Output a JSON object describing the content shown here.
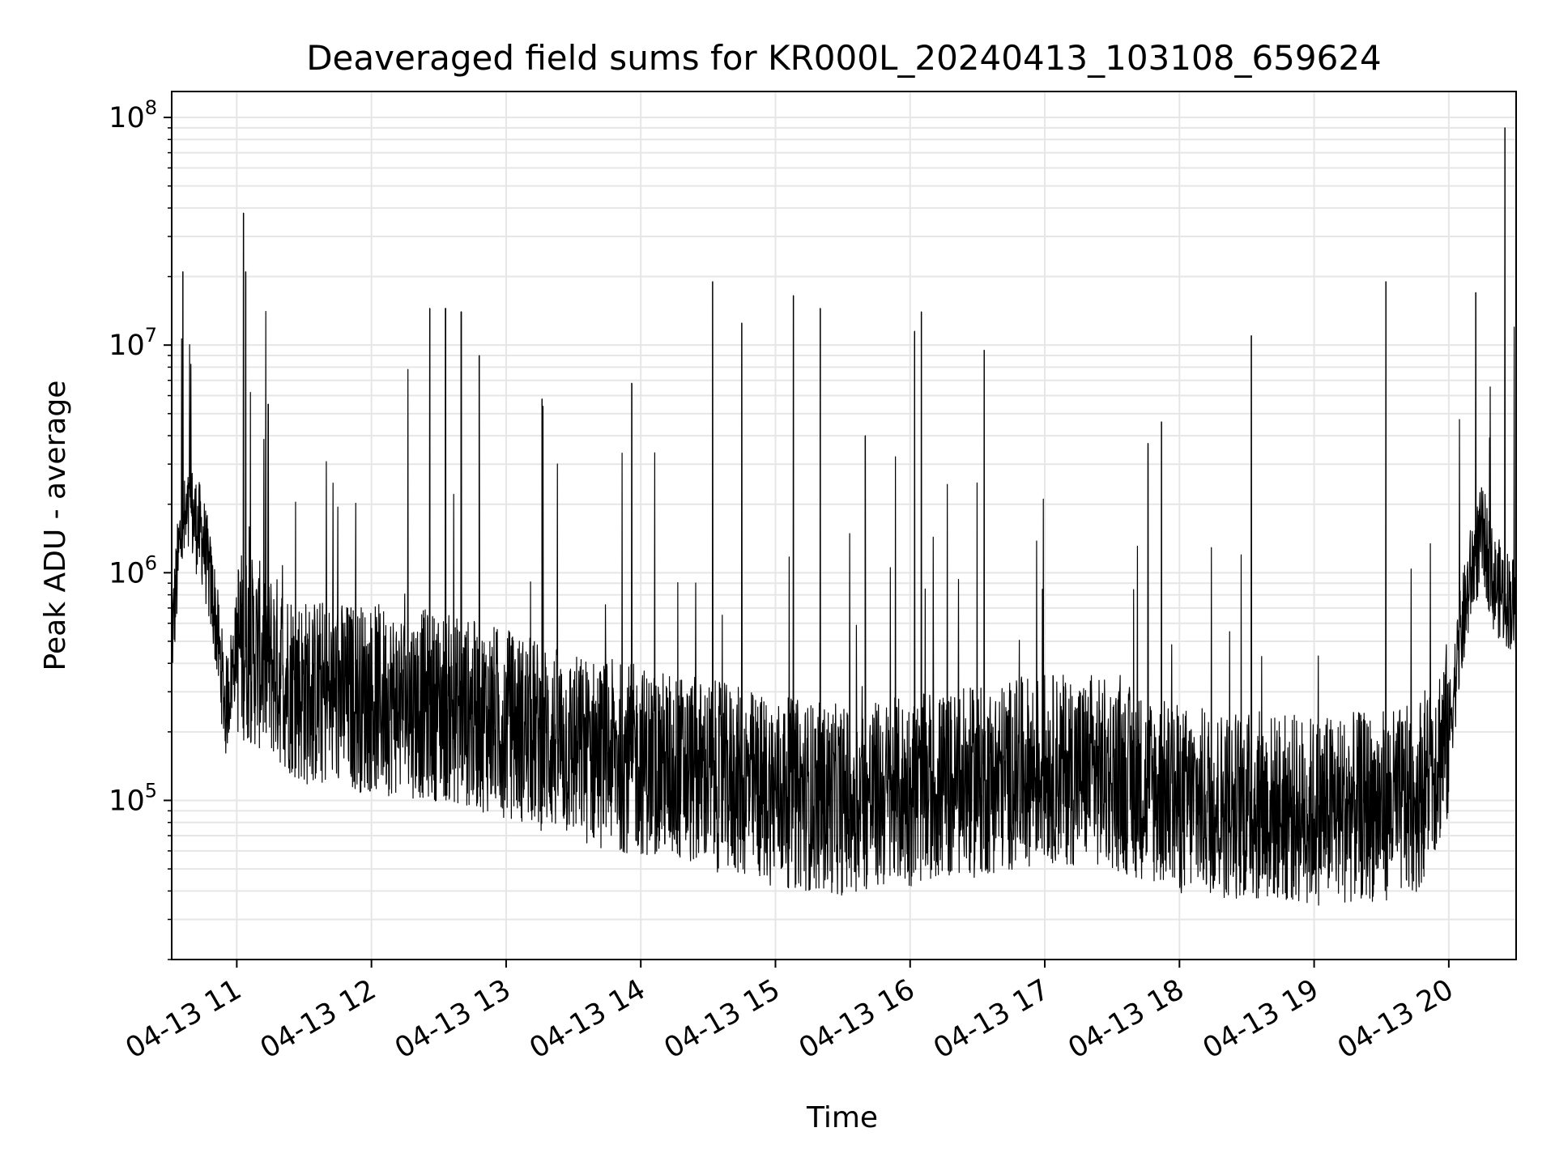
{
  "chart_data": {
    "type": "line",
    "title": "Deaveraged field sums for KR000L_20240413_103108_659624",
    "xlabel": "Time",
    "ylabel": "Peak ADU - average",
    "yscale": "log",
    "ylim": [
      20000,
      130000000
    ],
    "xlim": [
      "2024-04-13 10:31",
      "2024-04-13 20:30"
    ],
    "x_ticks": [
      "04-13 11",
      "04-13 12",
      "04-13 13",
      "04-13 14",
      "04-13 15",
      "04-13 16",
      "04-13 17",
      "04-13 18",
      "04-13 19",
      "04-13 20"
    ],
    "y_ticks": [
      {
        "base": "10",
        "exp": "5",
        "value": 100000
      },
      {
        "base": "10",
        "exp": "6",
        "value": 1000000
      },
      {
        "base": "10",
        "exp": "7",
        "value": 10000000
      },
      {
        "base": "10",
        "exp": "8",
        "value": 100000000
      }
    ],
    "grid": true,
    "line_color": "#000000",
    "series": [
      {
        "points": [
          [
            "2024-04-13 10:31",
            500000
          ],
          [
            "2024-04-13 10:35",
            1500000
          ],
          [
            "2024-04-13 10:40",
            1800000
          ],
          [
            "2024-04-13 10:45",
            1400000
          ],
          [
            "2024-04-13 10:50",
            700000
          ],
          [
            "2024-04-13 10:55",
            250000
          ],
          [
            "2024-04-13 11:00",
            500000
          ],
          [
            "2024-04-13 11:15",
            400000
          ],
          [
            "2024-04-13 11:30",
            300000
          ],
          [
            "2024-04-13 12:00",
            280000
          ],
          [
            "2024-04-13 12:30",
            260000
          ],
          [
            "2024-04-13 13:00",
            220000
          ],
          [
            "2024-04-13 13:30",
            170000
          ],
          [
            "2024-04-13 14:00",
            150000
          ],
          [
            "2024-04-13 14:30",
            130000
          ],
          [
            "2024-04-13 15:00",
            110000
          ],
          [
            "2024-04-13 15:30",
            100000
          ],
          [
            "2024-04-13 16:00",
            110000
          ],
          [
            "2024-04-13 16:30",
            120000
          ],
          [
            "2024-04-13 17:00",
            140000
          ],
          [
            "2024-04-13 17:30",
            130000
          ],
          [
            "2024-04-13 18:00",
            100000
          ],
          [
            "2024-04-13 18:30",
            95000
          ],
          [
            "2024-04-13 19:00",
            90000
          ],
          [
            "2024-04-13 19:30",
            95000
          ],
          [
            "2024-04-13 19:45",
            100000
          ],
          [
            "2024-04-13 20:00",
            200000
          ],
          [
            "2024-04-13 20:05",
            500000
          ],
          [
            "2024-04-13 20:10",
            1000000
          ],
          [
            "2024-04-13 20:15",
            1500000
          ],
          [
            "2024-04-13 20:20",
            900000
          ],
          [
            "2024-04-13 20:30",
            700000
          ]
        ]
      }
    ],
    "spikes": [
      [
        "2024-04-13 10:36",
        21000000
      ],
      [
        "2024-04-13 11:03",
        38000000
      ],
      [
        "2024-04-13 11:04",
        21000000
      ],
      [
        "2024-04-13 11:14",
        5500000
      ],
      [
        "2024-04-13 12:26",
        14500000
      ],
      [
        "2024-04-13 12:33",
        14500000
      ],
      [
        "2024-04-13 12:40",
        14000000
      ],
      [
        "2024-04-13 12:48",
        9000000
      ],
      [
        "2024-04-13 13:16",
        5800000
      ],
      [
        "2024-04-13 13:56",
        6800000
      ],
      [
        "2024-04-13 14:32",
        19000000
      ],
      [
        "2024-04-13 14:45",
        12500000
      ],
      [
        "2024-04-13 15:08",
        16500000
      ],
      [
        "2024-04-13 15:20",
        14500000
      ],
      [
        "2024-04-13 15:40",
        4000000
      ],
      [
        "2024-04-13 16:02",
        11500000
      ],
      [
        "2024-04-13 16:05",
        14000000
      ],
      [
        "2024-04-13 16:33",
        9500000
      ],
      [
        "2024-04-13 17:46",
        3700000
      ],
      [
        "2024-04-13 17:52",
        4600000
      ],
      [
        "2024-04-13 18:32",
        11000000
      ],
      [
        "2024-04-13 19:32",
        19000000
      ],
      [
        "2024-04-13 20:12",
        17000000
      ],
      [
        "2024-04-13 20:25",
        90000000
      ]
    ]
  }
}
